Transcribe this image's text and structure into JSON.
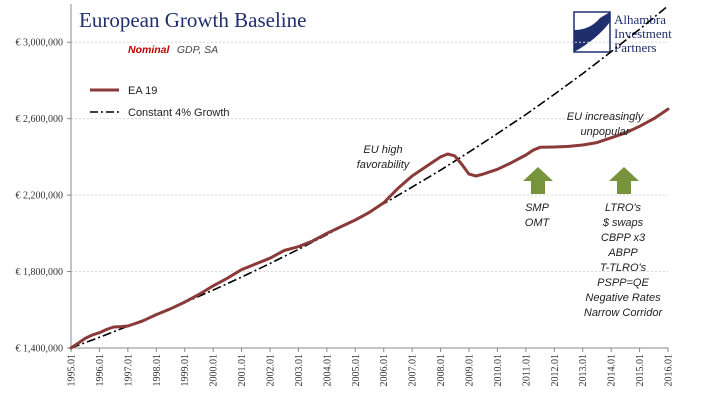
{
  "header": {
    "title": "European Growth Baseline",
    "subtitle_emphasis": "Nominal",
    "subtitle_rest": "GDP, SA"
  },
  "logo": {
    "line1": "Alhambra",
    "line2": "Investment",
    "line3": "Partners",
    "color": "#1f2f6e"
  },
  "colors": {
    "ea19": "#8b3a3a",
    "constant_growth": "#000000",
    "arrow": "#77933c",
    "title": "#1f2f6e",
    "emphasis": "#c00000"
  },
  "annotations": {
    "favorability": [
      "EU high",
      "favorability"
    ],
    "unpopular": [
      "EU increasingly",
      "unpopular"
    ],
    "smp": [
      "SMP",
      "OMT"
    ],
    "ltro": [
      "LTRO's",
      "$ swaps",
      "CBPP x3",
      "ABPP",
      "T-TLRO's",
      "PSPP=QE",
      "Negative Rates",
      "Narrow Corridor"
    ]
  },
  "chart_data": {
    "type": "line",
    "title": "European Growth Baseline",
    "subtitle": "Nominal GDP, SA",
    "ylim": [
      1400000,
      3200000
    ],
    "xlim": [
      1995.0,
      2016.0
    ],
    "y_ticks": [
      "€ 1,400,000",
      "€ 1,800,000",
      "€ 2,200,000",
      "€ 2,600,000",
      "€ 3,000,000"
    ],
    "y_tick_values": [
      1400000,
      1800000,
      2200000,
      2600000,
      3000000
    ],
    "x_ticks": [
      "1995.01",
      "1996.01",
      "1997.01",
      "1998.01",
      "1999.01",
      "2000.01",
      "2001.01",
      "2002.01",
      "2003.01",
      "2004.01",
      "2005.01",
      "2006.01",
      "2007.01",
      "2008.01",
      "2009.01",
      "2010.01",
      "2011.01",
      "2012.01",
      "2013.01",
      "2014.01",
      "2015.01",
      "2016.01"
    ],
    "x_tick_values": [
      1995,
      1996,
      1997,
      1998,
      1999,
      2000,
      2001,
      2002,
      2003,
      2004,
      2005,
      2006,
      2007,
      2008,
      2009,
      2010,
      2011,
      2012,
      2013,
      2014,
      2015,
      2016
    ],
    "grid": true,
    "legend_position": "top-left",
    "series": [
      {
        "name": "EA 19",
        "style": "solid",
        "x": [
          1995.0,
          1995.25,
          1995.5,
          1995.75,
          1996.0,
          1996.25,
          1996.5,
          1996.75,
          1997.0,
          1997.5,
          1998.0,
          1998.5,
          1999.0,
          1999.5,
          2000.0,
          2000.5,
          2001.0,
          2001.5,
          2002.0,
          2002.5,
          2003.0,
          2003.5,
          2004.0,
          2004.5,
          2005.0,
          2005.5,
          2006.0,
          2006.5,
          2007.0,
          2007.5,
          2008.0,
          2008.25,
          2008.5,
          2008.75,
          2009.0,
          2009.25,
          2009.5,
          2010.0,
          2010.5,
          2011.0,
          2011.25,
          2011.5,
          2012.0,
          2012.5,
          2013.0,
          2013.5,
          2014.0,
          2014.5,
          2015.0,
          2015.5,
          2016.0
        ],
        "y": [
          1400000,
          1425000,
          1450000,
          1468000,
          1480000,
          1497000,
          1510000,
          1512000,
          1515000,
          1540000,
          1575000,
          1605000,
          1640000,
          1680000,
          1725000,
          1765000,
          1810000,
          1840000,
          1870000,
          1910000,
          1930000,
          1960000,
          2000000,
          2035000,
          2070000,
          2110000,
          2160000,
          2235000,
          2300000,
          2350000,
          2400000,
          2415000,
          2405000,
          2360000,
          2310000,
          2300000,
          2310000,
          2335000,
          2370000,
          2410000,
          2435000,
          2450000,
          2452000,
          2455000,
          2462000,
          2475000,
          2500000,
          2525000,
          2560000,
          2600000,
          2650000
        ]
      },
      {
        "name": "Constant 4% Growth",
        "style": "dash-dot",
        "x": [
          1995.0,
          1996.0,
          1997.0,
          1998.0,
          1999.0,
          2000.0,
          2001.0,
          2002.0,
          2003.0,
          2004.0,
          2005.0,
          2006.0,
          2007.0,
          2008.0,
          2009.0,
          2010.0,
          2011.0,
          2012.0,
          2013.0,
          2014.0,
          2015.0,
          2016.0
        ],
        "y": [
          1400000,
          1456000,
          1514000,
          1575000,
          1638000,
          1703000,
          1771000,
          1842000,
          1916000,
          1993000,
          2072000,
          2155000,
          2242000,
          2331000,
          2425000,
          2522000,
          2622000,
          2727000,
          2836000,
          2950000,
          3068000,
          3190000
        ]
      }
    ]
  }
}
